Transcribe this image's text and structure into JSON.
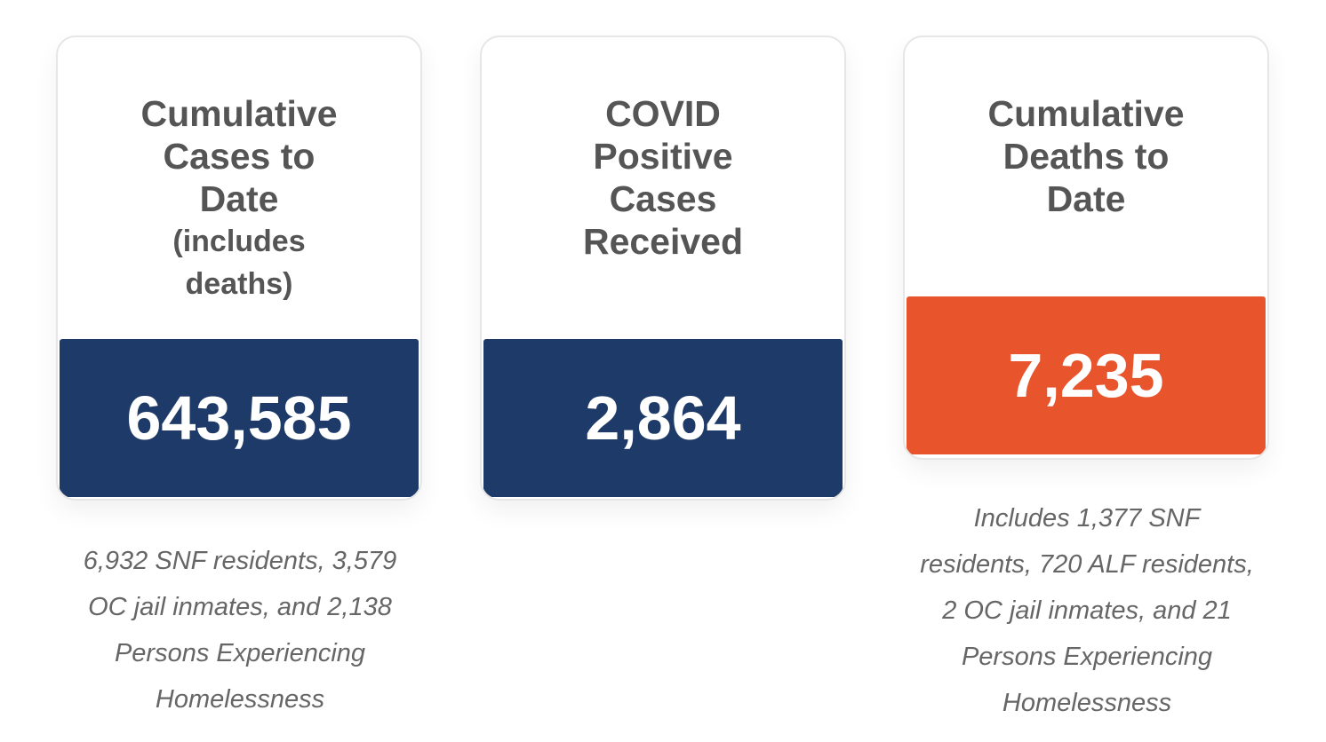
{
  "colors": {
    "navy": "#1e3a68",
    "orange": "#e8542c",
    "title_gray": "#555555",
    "note_gray": "#666666"
  },
  "cards": [
    {
      "title_lines": [
        "Cumulative",
        "Cases to",
        "Date"
      ],
      "subtitle_lines": [
        "(includes",
        "deaths)"
      ],
      "value": "643,585",
      "value_color": "#1e3a68",
      "note_lines": [
        "6,932 SNF residents, 3,579",
        "OC jail inmates, and 2,138",
        "Persons Experiencing",
        "Homelessness"
      ]
    },
    {
      "title_lines": [
        "COVID",
        "Positive",
        "Cases",
        "Received"
      ],
      "value": "2,864",
      "value_color": "#1e3a68"
    },
    {
      "title_lines": [
        "Cumulative",
        "Deaths to",
        "Date"
      ],
      "value": "7,235",
      "value_color": "#e8542c",
      "note_lines": [
        "Includes 1,377 SNF",
        "residents, 720 ALF residents,",
        "2 OC jail inmates, and 21",
        "Persons Experiencing",
        "Homelessness"
      ]
    }
  ]
}
